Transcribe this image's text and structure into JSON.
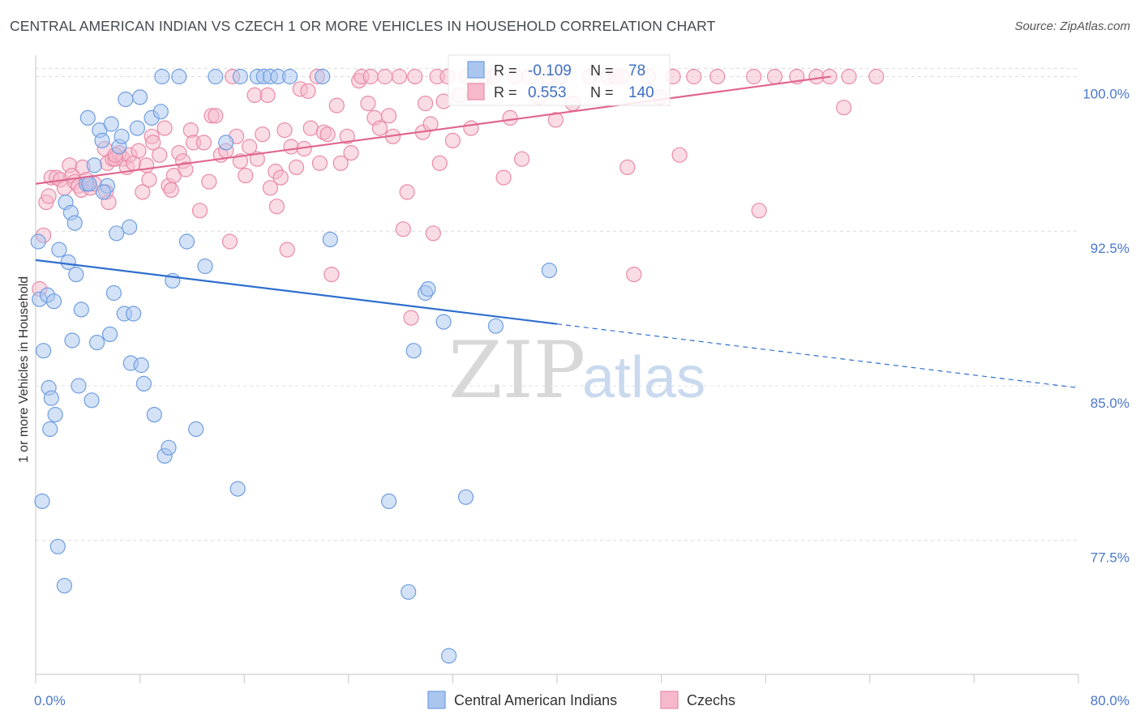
{
  "title": "CENTRAL AMERICAN INDIAN VS CZECH 1 OR MORE VEHICLES IN HOUSEHOLD CORRELATION CHART",
  "source": "Source: ZipAtlas.com",
  "watermark": {
    "zip": "ZIP",
    "atlas": "atlas"
  },
  "colors": {
    "blue_fill": "#aac6ef",
    "blue_stroke": "#6f9ee0",
    "blue_line": "#2f6fce",
    "pink_fill": "#f6b9cb",
    "pink_stroke": "#e98aa8",
    "pink_line": "#e0668e",
    "tick_text": "#4a78c8",
    "grid": "#dcdcdc"
  },
  "legend": {
    "rows": [
      {
        "r_label": "R =",
        "r_value": "-0.109",
        "n_label": "N =",
        "n_value": "78",
        "series": "blue"
      },
      {
        "r_label": "R =",
        "r_value": "0.553",
        "n_label": "N =",
        "n_value": "140",
        "series": "pink"
      }
    ]
  },
  "bottom_legend": [
    "Central American Indians",
    "Czechs"
  ],
  "chart_data": {
    "type": "scatter",
    "title": "CENTRAL AMERICAN INDIAN VS CZECH 1 OR MORE VEHICLES IN HOUSEHOLD CORRELATION CHART",
    "xlabel": "",
    "ylabel": "1 or more Vehicles in Household",
    "xlim": [
      0,
      80
    ],
    "ylim": [
      71,
      101.2
    ],
    "x_ticks": [
      "0.0%",
      "80.0%"
    ],
    "y_ticks": [
      {
        "value": 100.0,
        "label": "100.0%"
      },
      {
        "value": 92.5,
        "label": "92.5%"
      },
      {
        "value": 85.0,
        "label": "85.0%"
      },
      {
        "value": 77.5,
        "label": "77.5%"
      }
    ],
    "grid": true,
    "legend_position": "top-center",
    "series": [
      {
        "name": "Central American Indians",
        "color": "#aac6ef",
        "trend": {
          "x0": 0,
          "y0": 91.1,
          "x1": 40,
          "y1": 88.0,
          "dashed_to_x": 80,
          "dashed_to_y": 84.9
        },
        "points": [
          [
            0.2,
            92.0
          ],
          [
            0.3,
            89.2
          ],
          [
            0.5,
            79.4
          ],
          [
            0.6,
            86.7
          ],
          [
            0.9,
            89.4
          ],
          [
            1.0,
            84.9
          ],
          [
            1.1,
            82.9
          ],
          [
            1.2,
            84.4
          ],
          [
            1.4,
            89.1
          ],
          [
            1.5,
            83.6
          ],
          [
            1.7,
            77.2
          ],
          [
            1.8,
            91.6
          ],
          [
            2.2,
            75.3
          ],
          [
            2.3,
            93.9
          ],
          [
            2.5,
            91.0
          ],
          [
            2.7,
            93.4
          ],
          [
            2.8,
            87.2
          ],
          [
            3.0,
            92.9
          ],
          [
            3.1,
            90.4
          ],
          [
            3.3,
            85.0
          ],
          [
            3.5,
            88.7
          ],
          [
            3.9,
            94.8
          ],
          [
            4.0,
            98.0
          ],
          [
            4.3,
            84.3
          ],
          [
            4.5,
            95.7
          ],
          [
            4.7,
            87.1
          ],
          [
            4.9,
            97.4
          ],
          [
            5.1,
            96.9
          ],
          [
            5.5,
            94.7
          ],
          [
            5.7,
            87.5
          ],
          [
            5.8,
            97.7
          ],
          [
            6.0,
            89.5
          ],
          [
            6.2,
            92.4
          ],
          [
            6.4,
            96.6
          ],
          [
            6.6,
            97.1
          ],
          [
            6.8,
            88.5
          ],
          [
            6.9,
            98.9
          ],
          [
            7.2,
            92.7
          ],
          [
            7.3,
            86.1
          ],
          [
            7.5,
            88.5
          ],
          [
            7.8,
            97.5
          ],
          [
            8.0,
            99.0
          ],
          [
            8.1,
            86.0
          ],
          [
            8.3,
            85.1
          ],
          [
            8.9,
            98.0
          ],
          [
            9.1,
            83.6
          ],
          [
            9.6,
            98.3
          ],
          [
            9.7,
            100.0
          ],
          [
            9.9,
            81.6
          ],
          [
            10.2,
            82.0
          ],
          [
            10.5,
            90.1
          ],
          [
            11.0,
            100.0
          ],
          [
            11.6,
            92.0
          ],
          [
            12.3,
            82.9
          ],
          [
            13.0,
            90.8
          ],
          [
            13.8,
            100.0
          ],
          [
            14.6,
            96.8
          ],
          [
            15.5,
            80.0
          ],
          [
            15.7,
            100.0
          ],
          [
            17.0,
            100.0
          ],
          [
            17.5,
            100.0
          ],
          [
            18.0,
            100.0
          ],
          [
            18.6,
            100.0
          ],
          [
            19.5,
            100.0
          ],
          [
            22.0,
            100.0
          ],
          [
            22.6,
            92.1
          ],
          [
            27.1,
            79.4
          ],
          [
            28.6,
            75.0
          ],
          [
            29.0,
            86.7
          ],
          [
            29.9,
            89.5
          ],
          [
            30.1,
            89.7
          ],
          [
            31.7,
            71.9
          ],
          [
            31.3,
            88.1
          ],
          [
            33.0,
            79.6
          ],
          [
            35.3,
            87.9
          ],
          [
            39.4,
            90.6
          ],
          [
            5.2,
            94.4
          ],
          [
            4.1,
            94.8
          ]
        ]
      },
      {
        "name": "Czechs",
        "color": "#f6b9cb",
        "trend": {
          "x0": 0,
          "y0": 94.8,
          "x1": 61,
          "y1": 100.0
        },
        "points": [
          [
            0.3,
            89.7
          ],
          [
            0.6,
            92.3
          ],
          [
            0.8,
            93.9
          ],
          [
            1.0,
            94.2
          ],
          [
            1.2,
            95.1
          ],
          [
            1.6,
            95.1
          ],
          [
            1.9,
            95.0
          ],
          [
            2.2,
            94.6
          ],
          [
            2.6,
            95.7
          ],
          [
            2.8,
            95.2
          ],
          [
            3.0,
            94.9
          ],
          [
            3.3,
            94.7
          ],
          [
            3.5,
            94.5
          ],
          [
            3.6,
            95.6
          ],
          [
            3.9,
            95.0
          ],
          [
            4.2,
            94.6
          ],
          [
            4.5,
            94.8
          ],
          [
            5.3,
            96.5
          ],
          [
            5.4,
            94.4
          ],
          [
            5.5,
            95.8
          ],
          [
            5.6,
            93.9
          ],
          [
            5.9,
            96.0
          ],
          [
            6.1,
            96.0
          ],
          [
            6.4,
            96.3
          ],
          [
            6.7,
            96.0
          ],
          [
            7.0,
            95.6
          ],
          [
            7.2,
            96.2
          ],
          [
            7.5,
            95.8
          ],
          [
            7.9,
            96.4
          ],
          [
            8.2,
            94.4
          ],
          [
            8.5,
            95.7
          ],
          [
            8.7,
            95.0
          ],
          [
            8.9,
            97.1
          ],
          [
            9.0,
            96.8
          ],
          [
            9.5,
            96.2
          ],
          [
            9.9,
            97.5
          ],
          [
            10.2,
            94.7
          ],
          [
            10.4,
            94.5
          ],
          [
            10.6,
            95.2
          ],
          [
            11.0,
            96.3
          ],
          [
            11.3,
            95.9
          ],
          [
            11.5,
            95.5
          ],
          [
            11.9,
            97.4
          ],
          [
            12.1,
            96.8
          ],
          [
            12.6,
            93.5
          ],
          [
            12.9,
            96.8
          ],
          [
            13.3,
            94.9
          ],
          [
            13.5,
            98.1
          ],
          [
            13.8,
            98.1
          ],
          [
            14.2,
            96.2
          ],
          [
            14.6,
            96.4
          ],
          [
            14.9,
            92.0
          ],
          [
            15.4,
            97.1
          ],
          [
            15.7,
            95.9
          ],
          [
            16.1,
            95.2
          ],
          [
            16.4,
            96.6
          ],
          [
            16.8,
            99.1
          ],
          [
            17.0,
            96.0
          ],
          [
            17.4,
            97.2
          ],
          [
            17.8,
            99.1
          ],
          [
            18.0,
            94.6
          ],
          [
            18.4,
            95.4
          ],
          [
            18.5,
            93.7
          ],
          [
            18.8,
            95.1
          ],
          [
            19.1,
            97.4
          ],
          [
            19.3,
            91.6
          ],
          [
            19.6,
            96.6
          ],
          [
            20.0,
            95.6
          ],
          [
            20.3,
            99.4
          ],
          [
            20.6,
            96.5
          ],
          [
            20.9,
            99.3
          ],
          [
            21.1,
            97.5
          ],
          [
            21.8,
            95.8
          ],
          [
            22.1,
            97.3
          ],
          [
            22.4,
            97.2
          ],
          [
            22.7,
            90.4
          ],
          [
            23.1,
            98.6
          ],
          [
            23.4,
            95.8
          ],
          [
            23.9,
            97.1
          ],
          [
            24.2,
            96.3
          ],
          [
            24.8,
            99.8
          ],
          [
            25.0,
            100.0
          ],
          [
            25.5,
            98.7
          ],
          [
            25.7,
            100.0
          ],
          [
            26.0,
            98.0
          ],
          [
            26.4,
            97.5
          ],
          [
            26.8,
            100.0
          ],
          [
            27.1,
            98.1
          ],
          [
            27.4,
            97.1
          ],
          [
            27.9,
            100.0
          ],
          [
            28.2,
            92.6
          ],
          [
            28.5,
            94.4
          ],
          [
            28.8,
            88.3
          ],
          [
            29.1,
            100.0
          ],
          [
            29.7,
            97.3
          ],
          [
            29.9,
            98.7
          ],
          [
            30.3,
            97.7
          ],
          [
            30.5,
            92.4
          ],
          [
            30.8,
            100.0
          ],
          [
            31.0,
            95.8
          ],
          [
            31.3,
            98.8
          ],
          [
            31.6,
            100.0
          ],
          [
            32.0,
            96.9
          ],
          [
            32.5,
            99.1
          ],
          [
            33.1,
            100.0
          ],
          [
            33.4,
            97.5
          ],
          [
            34.4,
            100.0
          ],
          [
            35.1,
            100.0
          ],
          [
            35.9,
            95.1
          ],
          [
            36.4,
            98.0
          ],
          [
            36.8,
            100.0
          ],
          [
            37.3,
            96.0
          ],
          [
            37.9,
            100.0
          ],
          [
            38.6,
            99.0
          ],
          [
            39.3,
            100.0
          ],
          [
            39.9,
            97.9
          ],
          [
            40.2,
            100.0
          ],
          [
            41.2,
            98.7
          ],
          [
            42.5,
            100.0
          ],
          [
            43.9,
            100.0
          ],
          [
            45.0,
            100.0
          ],
          [
            45.4,
            95.6
          ],
          [
            45.9,
            90.4
          ],
          [
            47.0,
            100.0
          ],
          [
            47.9,
            99.0
          ],
          [
            48.9,
            100.0
          ],
          [
            49.4,
            96.2
          ],
          [
            50.5,
            100.0
          ],
          [
            52.3,
            100.0
          ],
          [
            55.1,
            100.0
          ],
          [
            55.5,
            93.5
          ],
          [
            56.7,
            100.0
          ],
          [
            58.4,
            100.0
          ],
          [
            59.9,
            100.0
          ],
          [
            60.9,
            100.0
          ],
          [
            62.0,
            98.5
          ],
          [
            62.4,
            100.0
          ],
          [
            64.5,
            100.0
          ],
          [
            15.1,
            100.0
          ],
          [
            6.1,
            96.2
          ],
          [
            21.6,
            100.0
          ],
          [
            44.5,
            100.0
          ]
        ]
      }
    ]
  }
}
